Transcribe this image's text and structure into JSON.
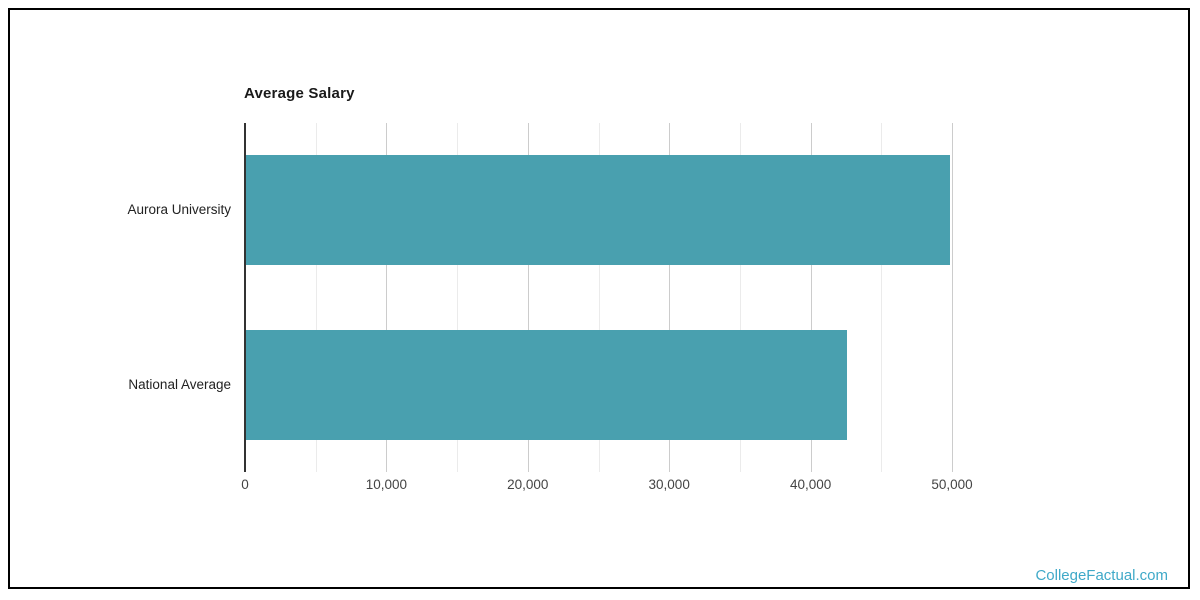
{
  "page": {
    "background_color": "#ffffff",
    "border_color": "#000000"
  },
  "watermark": {
    "text": "CollegeFactual.com",
    "color": "#3fa9c8"
  },
  "chart_data": {
    "type": "bar",
    "orientation": "horizontal",
    "title": "Average Salary",
    "categories": [
      "Aurora University",
      "National Average"
    ],
    "values": [
      49800,
      42500
    ],
    "xlabel": "",
    "ylabel": "",
    "xlim": [
      0,
      50000
    ],
    "x_major_tick_step": 10000,
    "x_minor_tick_step": 5000,
    "x_tick_labels": [
      "0",
      "10,000",
      "20,000",
      "30,000",
      "40,000",
      "50,000"
    ],
    "grid": true,
    "legend_position": "none",
    "bar_color": "#49a0af",
    "axis_line_color": "#333333",
    "major_gridline_color": "#cccccc",
    "minor_gridline_color": "#ebebeb",
    "title_color": "#1a1a1a",
    "category_label_color": "#222222",
    "tick_label_color": "#444444"
  }
}
